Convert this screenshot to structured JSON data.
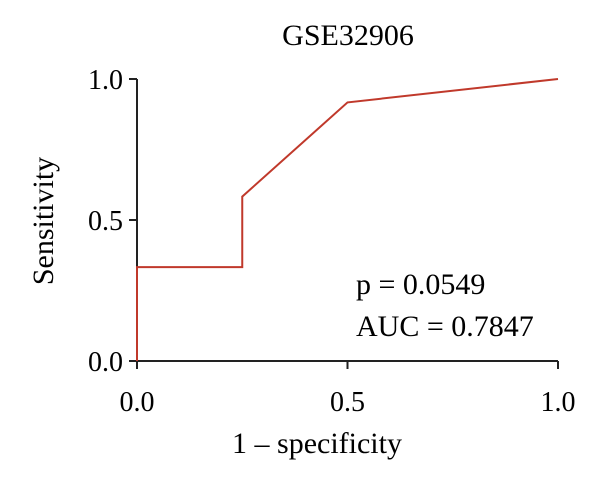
{
  "chart_data": {
    "type": "line",
    "title": "GSE32906",
    "xlabel": "1 – specificity",
    "ylabel": "Sensitivity",
    "xlim": [
      0,
      1
    ],
    "ylim": [
      0,
      1
    ],
    "x_ticks": [
      0,
      0.5,
      1
    ],
    "y_ticks": [
      0,
      0.5,
      1
    ],
    "x_tick_labels": [
      "0.0",
      "0.5",
      "1.0"
    ],
    "y_tick_labels": [
      "0.0",
      "0.5",
      "1.0"
    ],
    "grid": false,
    "legend": "none",
    "series": [
      {
        "color": "#c0392b",
        "points": [
          {
            "x": 0.0,
            "y": 0.0
          },
          {
            "x": 0.0,
            "y": 0.333
          },
          {
            "x": 0.25,
            "y": 0.333
          },
          {
            "x": 0.25,
            "y": 0.583
          },
          {
            "x": 0.5,
            "y": 0.917
          },
          {
            "x": 1.0,
            "y": 1.0
          }
        ]
      }
    ],
    "annotations": [
      "p = 0.0549",
      "AUC = 0.7847"
    ]
  }
}
